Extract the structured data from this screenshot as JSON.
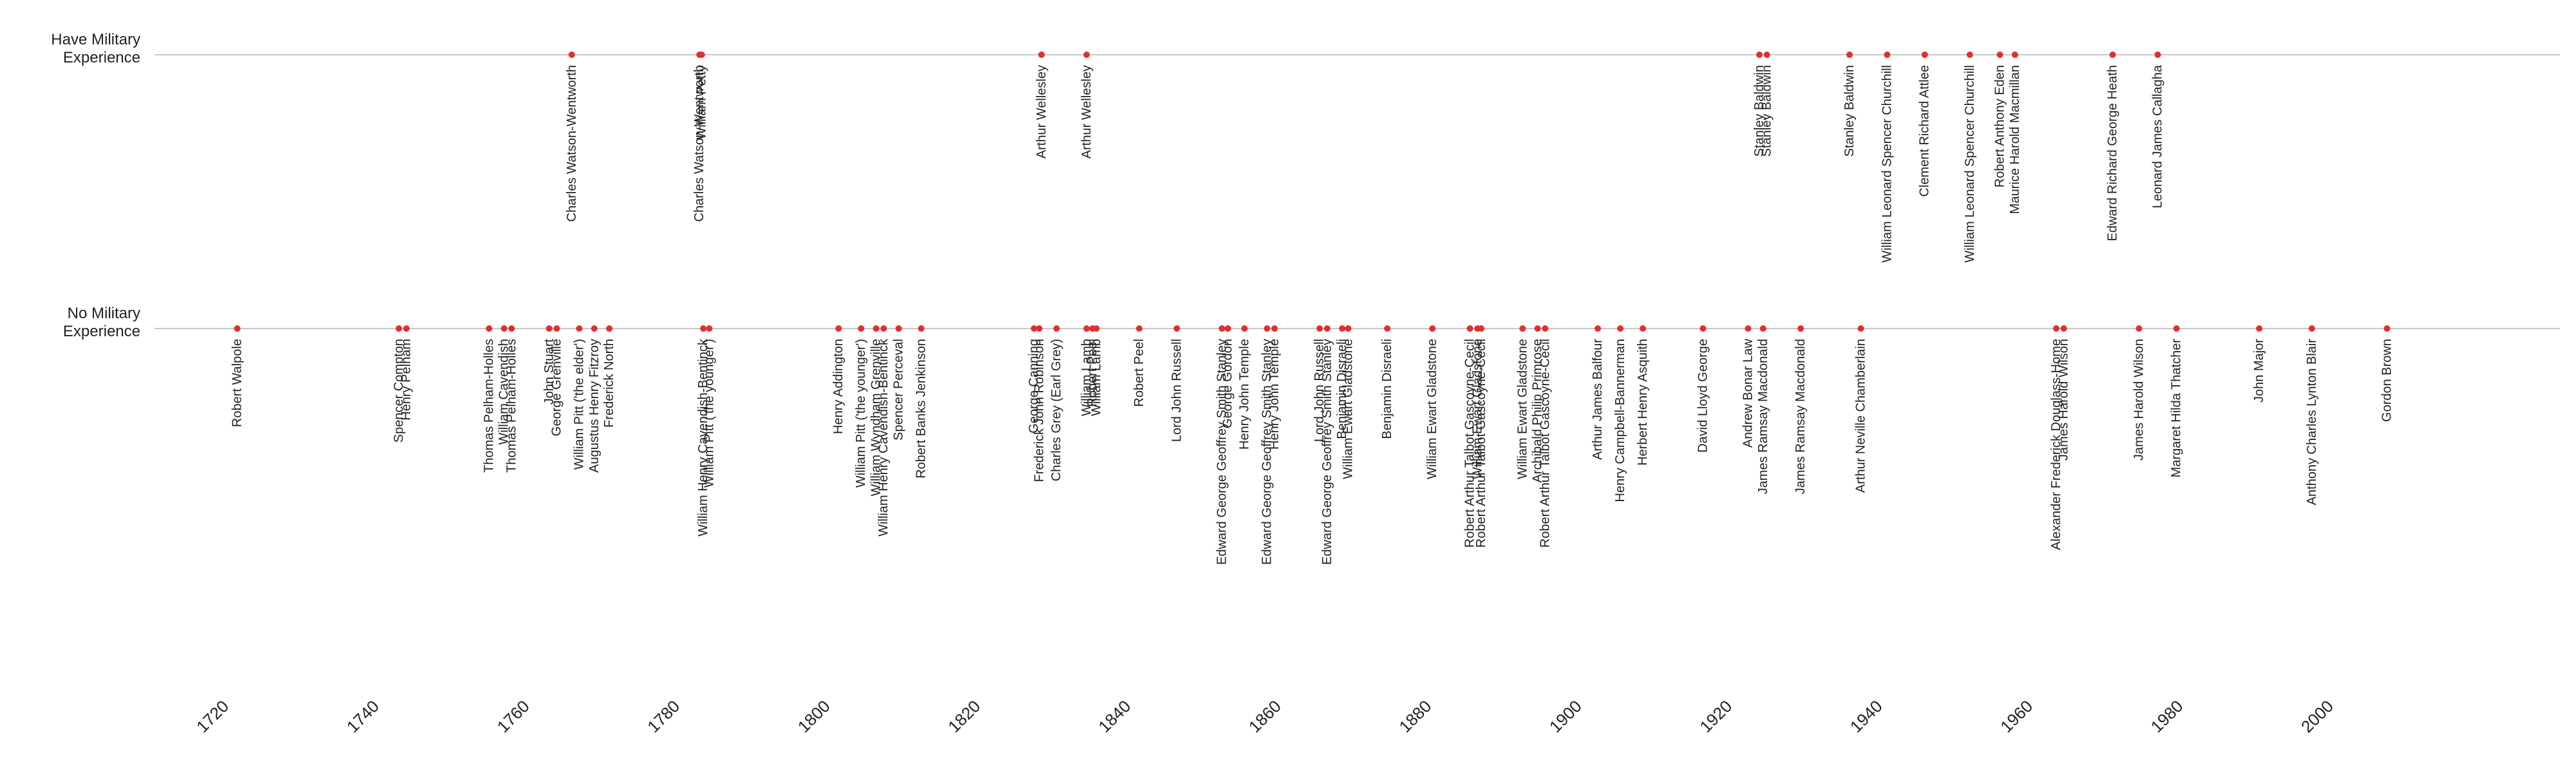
{
  "chart_data": {
    "type": "scatter",
    "title": "",
    "xlabel": "",
    "ylabel": "",
    "xlim": [
      1710,
      2030
    ],
    "x_ticks": [
      1720,
      1740,
      1760,
      1780,
      1800,
      1820,
      1840,
      1860,
      1880,
      1900,
      1920,
      1940,
      1960,
      1980,
      2000
    ],
    "grid": false,
    "categories": [
      "No Military Experience",
      "Have Military Experience"
    ],
    "category_labels": [
      [
        "No Military",
        "Experience"
      ],
      [
        "Have Military",
        "Experience"
      ]
    ],
    "marker_color": "#e0302e",
    "axis_line_color": "#c8c8c8",
    "series": [
      {
        "category": "Have Military Experience",
        "points": [
          {
            "x": 1765.5,
            "label": "Charles Watson-Wentworth"
          },
          {
            "x": 1782.5,
            "label": "Charles Watson-Wentworth"
          },
          {
            "x": 1782.8,
            "label": "William Petty"
          },
          {
            "x": 1828.0,
            "label": "Arthur Wellesley"
          },
          {
            "x": 1834.0,
            "label": "Arthur Wellesley"
          },
          {
            "x": 1923.5,
            "label": "Stanley Baldwin"
          },
          {
            "x": 1924.5,
            "label": "Stanley Baldwin"
          },
          {
            "x": 1935.5,
            "label": "Stanley Baldwin"
          },
          {
            "x": 1940.5,
            "label": "William Leonard Spencer Churchill"
          },
          {
            "x": 1945.5,
            "label": "Clement Richard Attlee"
          },
          {
            "x": 1951.5,
            "label": "William Leonard Spencer Churchill"
          },
          {
            "x": 1955.5,
            "label": "Robert Anthony Eden"
          },
          {
            "x": 1957.5,
            "label": "Maurice Harold Macmillan"
          },
          {
            "x": 1970.5,
            "label": "Edward Richard George Heath"
          },
          {
            "x": 1976.5,
            "label": "Leonard James Callagha"
          }
        ]
      },
      {
        "category": "No Military Experience",
        "points": [
          {
            "x": 1721.0,
            "label": "Robert Walpole"
          },
          {
            "x": 1742.5,
            "label": "Spencer Compton"
          },
          {
            "x": 1743.5,
            "label": "Henry Pelham"
          },
          {
            "x": 1754.5,
            "label": "Thomas Pelham-Holles"
          },
          {
            "x": 1756.5,
            "label": "William Cavendish"
          },
          {
            "x": 1757.5,
            "label": "Thomas Pelham-Holles"
          },
          {
            "x": 1762.5,
            "label": "John Stuart"
          },
          {
            "x": 1763.5,
            "label": "George Grenville"
          },
          {
            "x": 1766.5,
            "label": "William Pitt ('the elder')"
          },
          {
            "x": 1768.5,
            "label": "Augustus Henry Fitzroy"
          },
          {
            "x": 1770.5,
            "label": "Frederick North"
          },
          {
            "x": 1783.0,
            "label": "William Henry Cavendish-Bentinck"
          },
          {
            "x": 1783.8,
            "label": "William Pitt ('the younger')"
          },
          {
            "x": 1801.0,
            "label": "Henry Addington"
          },
          {
            "x": 1804.0,
            "label": "William Pitt ('the younger')"
          },
          {
            "x": 1806.0,
            "label": "William Wyndham Grenville"
          },
          {
            "x": 1807.0,
            "label": "William Henry Cavendish-Bentinck"
          },
          {
            "x": 1809.0,
            "label": "Spencer Perceval"
          },
          {
            "x": 1812.0,
            "label": "Robert Banks Jenkinson"
          },
          {
            "x": 1827.0,
            "label": "George Canning"
          },
          {
            "x": 1827.7,
            "label": "Frederick John Robinson"
          },
          {
            "x": 1830.0,
            "label": "Charles Grey (Earl Grey)"
          },
          {
            "x": 1834.0,
            "label": "William Lamb"
          },
          {
            "x": 1834.8,
            "label": "Robert Peel"
          },
          {
            "x": 1835.3,
            "label": "William Lamb"
          },
          {
            "x": 1841.0,
            "label": "Robert Peel"
          },
          {
            "x": 1846.0,
            "label": "Lord John Russell"
          },
          {
            "x": 1852.0,
            "label": "Edward George Geoffrey Smith Stanley"
          },
          {
            "x": 1852.8,
            "label": "George Gordon"
          },
          {
            "x": 1855.0,
            "label": "Henry John Temple"
          },
          {
            "x": 1858.0,
            "label": "Edward George Geoffrey Smith Stanley"
          },
          {
            "x": 1859.0,
            "label": "Henry John Temple"
          },
          {
            "x": 1865.0,
            "label": "Lord John Russell"
          },
          {
            "x": 1866.0,
            "label": "Edward George Geoffrey Smith Stanley"
          },
          {
            "x": 1868.0,
            "label": "Benjamin Disraeli"
          },
          {
            "x": 1868.8,
            "label": "William Ewart Gladstone"
          },
          {
            "x": 1874.0,
            "label": "Benjamin Disraeli"
          },
          {
            "x": 1880.0,
            "label": "William Ewart Gladstone"
          },
          {
            "x": 1885.0,
            "label": "Robert Arthur Talbot Gascoyne-Cecil"
          },
          {
            "x": 1886.0,
            "label": "William Ewart Gladstone"
          },
          {
            "x": 1886.5,
            "label": "Robert Arthur Talbot Gascoyne-Cecil"
          },
          {
            "x": 1892.0,
            "label": "William Ewart Gladstone"
          },
          {
            "x": 1894.0,
            "label": "Archibald Philip Primrose"
          },
          {
            "x": 1895.0,
            "label": "Robert Arthur Talbot Gascoyne-Cecil"
          },
          {
            "x": 1902.0,
            "label": "Arthur James Balfour"
          },
          {
            "x": 1905.0,
            "label": "Henry Campbell-Bannerman"
          },
          {
            "x": 1908.0,
            "label": "Herbert Henry Asquith"
          },
          {
            "x": 1916.0,
            "label": "David Lloyd George"
          },
          {
            "x": 1922.0,
            "label": "Andrew Bonar Law"
          },
          {
            "x": 1924.0,
            "label": "James Ramsay Macdonald"
          },
          {
            "x": 1929.0,
            "label": "James Ramsay Macdonald"
          },
          {
            "x": 1937.0,
            "label": "Arthur Neville Chamberlain"
          },
          {
            "x": 1963.0,
            "label": "Alexander Frederick Douglass-Home"
          },
          {
            "x": 1964.0,
            "label": "James Harold Wilson"
          },
          {
            "x": 1974.0,
            "label": "James Harold Wilson"
          },
          {
            "x": 1979.0,
            "label": "Margaret Hilda Thatcher"
          },
          {
            "x": 1990.0,
            "label": "John Major"
          },
          {
            "x": 1997.0,
            "label": "Anthony Charles Lynton Blair"
          },
          {
            "x": 2007.0,
            "label": "Gordon Brown"
          }
        ]
      }
    ]
  }
}
